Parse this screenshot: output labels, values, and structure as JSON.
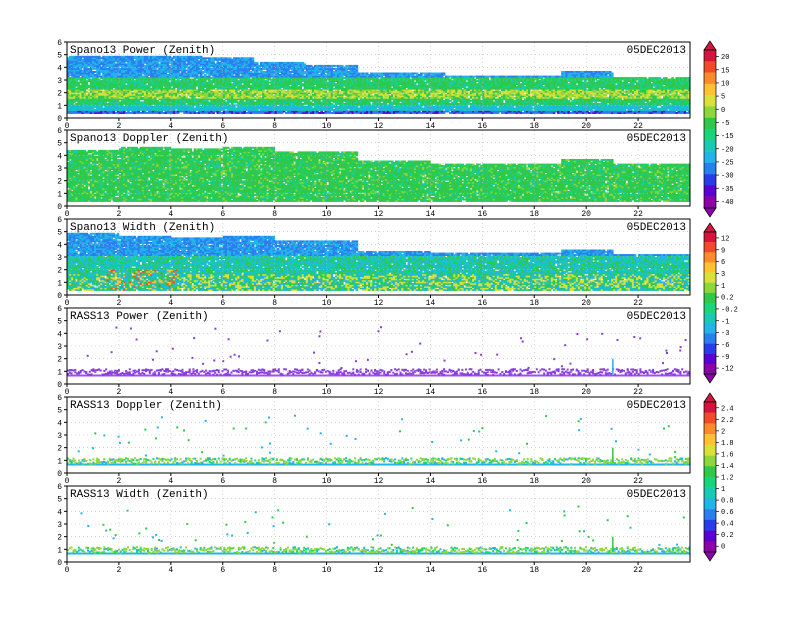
{
  "chart_data": [
    {
      "type": "heatmap",
      "title": "Spano13 Power (Zenith)",
      "date": "05DEC2013",
      "x_ticks": [
        0,
        2,
        4,
        6,
        8,
        10,
        12,
        14,
        16,
        18,
        20,
        22
      ],
      "y_ticks": [
        0,
        1,
        2,
        3,
        4,
        5,
        6
      ],
      "xlim": [
        0,
        24
      ],
      "ylim": [
        0,
        6
      ],
      "grid": true,
      "colorbar_ticks": [
        "20",
        "15",
        "10",
        "5",
        "0",
        "-5",
        "-15",
        "-20",
        "-25",
        "-30",
        "-35",
        "-40"
      ],
      "colormap": [
        "#8b00a8",
        "#5a00d0",
        "#2a3ce8",
        "#2a7ff0",
        "#22b4e8",
        "#19c9b4",
        "#1bd37a",
        "#2ec94a",
        "#8ed63a",
        "#d9e03a",
        "#ffc232",
        "#ff8a2a",
        "#f04a2a",
        "#d4143c"
      ],
      "field": "power",
      "echo_top": [
        [
          0,
          4.9
        ],
        [
          3.6,
          4.8
        ],
        [
          5.2,
          4.7
        ],
        [
          7.2,
          4.4
        ],
        [
          9.2,
          4.1
        ],
        [
          11.2,
          3.5
        ],
        [
          14.5,
          3.3
        ],
        [
          19,
          3.6
        ],
        [
          21,
          3.2
        ],
        [
          24,
          3.2
        ]
      ]
    },
    {
      "type": "heatmap",
      "title": "Spano13 Doppler (Zenith)",
      "date": "05DEC2013",
      "x_ticks": [
        0,
        2,
        4,
        6,
        8,
        10,
        12,
        14,
        16,
        18,
        20,
        22
      ],
      "y_ticks": [
        0,
        1,
        2,
        3,
        4,
        5,
        6
      ],
      "xlim": [
        0,
        24
      ],
      "ylim": [
        0,
        6
      ],
      "grid": true,
      "field": "doppler",
      "echo_top": [
        [
          0,
          4.4
        ],
        [
          2,
          4.6
        ],
        [
          4,
          4.5
        ],
        [
          6,
          4.6
        ],
        [
          8,
          4.3
        ],
        [
          9.5,
          4.2
        ],
        [
          11.2,
          3.5
        ],
        [
          14,
          3.3
        ],
        [
          19,
          3.6
        ],
        [
          21,
          3.3
        ],
        [
          24,
          3.3
        ]
      ]
    },
    {
      "type": "heatmap",
      "title": "Spano13 Width (Zenith)",
      "date": "05DEC2013",
      "x_ticks": [
        0,
        2,
        4,
        6,
        8,
        10,
        12,
        14,
        16,
        18,
        20,
        22
      ],
      "y_ticks": [
        0,
        1,
        2,
        3,
        4,
        5,
        6
      ],
      "xlim": [
        0,
        24
      ],
      "ylim": [
        0,
        6
      ],
      "grid": true,
      "colorbar_ticks": [
        "12",
        "9",
        "6",
        "3",
        "1",
        "0.2",
        "-0.2",
        "-1",
        "-3",
        "-6",
        "-9",
        "-12"
      ],
      "colormap": [
        "#8b00a8",
        "#5a00d0",
        "#2a3ce8",
        "#2a7ff0",
        "#22b4e8",
        "#19c9b4",
        "#1bd37a",
        "#2ec94a",
        "#8ed63a",
        "#d9e03a",
        "#ffc232",
        "#ff8a2a",
        "#f04a2a",
        "#d4143c"
      ],
      "field": "width",
      "echo_top": [
        [
          0,
          4.9
        ],
        [
          2,
          4.6
        ],
        [
          4,
          4.5
        ],
        [
          6,
          4.6
        ],
        [
          8,
          4.2
        ],
        [
          9.5,
          4.2
        ],
        [
          11.2,
          3.4
        ],
        [
          14,
          3.3
        ],
        [
          19,
          3.5
        ],
        [
          21,
          3.2
        ],
        [
          24,
          3.2
        ]
      ]
    },
    {
      "type": "heatmap",
      "title": "RASS13 Power (Zenith)",
      "date": "05DEC2013",
      "x_ticks": [
        0,
        2,
        4,
        6,
        8,
        10,
        12,
        14,
        16,
        18,
        20,
        22
      ],
      "y_ticks": [
        0,
        1,
        2,
        3,
        4,
        5,
        6
      ],
      "xlim": [
        0,
        24
      ],
      "ylim": [
        0,
        6
      ],
      "grid": true,
      "field": "rass_power",
      "band": [
        0.7,
        1.3
      ]
    },
    {
      "type": "heatmap",
      "title": "RASS13 Doppler (Zenith)",
      "date": "05DEC2013",
      "x_ticks": [
        0,
        2,
        4,
        6,
        8,
        10,
        12,
        14,
        16,
        18,
        20,
        22
      ],
      "y_ticks": [
        0,
        1,
        2,
        3,
        4,
        5,
        6
      ],
      "xlim": [
        0,
        24
      ],
      "ylim": [
        0,
        6
      ],
      "grid": true,
      "colorbar_ticks": [
        "2.4",
        "2.2",
        "2",
        "1.8",
        "1.6",
        "1.4",
        "1.2",
        "1",
        "0.8",
        "0.6",
        "0.4",
        "0.2",
        "0"
      ],
      "colormap": [
        "#8b00a8",
        "#5a00d0",
        "#2a3ce8",
        "#2a7ff0",
        "#22b4e8",
        "#19c9b4",
        "#1bd37a",
        "#2ec94a",
        "#8ed63a",
        "#d9e03a",
        "#ffc232",
        "#ff8a2a",
        "#f04a2a",
        "#d4143c"
      ],
      "field": "rass_doppler",
      "band": [
        0.7,
        1.3
      ]
    },
    {
      "type": "heatmap",
      "title": "RASS13 Width (Zenith)",
      "date": "05DEC2013",
      "x_ticks": [
        0,
        2,
        4,
        6,
        8,
        10,
        12,
        14,
        16,
        18,
        20,
        22
      ],
      "y_ticks": [
        0,
        1,
        2,
        3,
        4,
        5,
        6
      ],
      "xlim": [
        0,
        24
      ],
      "ylim": [
        0,
        6
      ],
      "grid": true,
      "field": "rass_width",
      "band": [
        0.7,
        1.3
      ]
    }
  ]
}
